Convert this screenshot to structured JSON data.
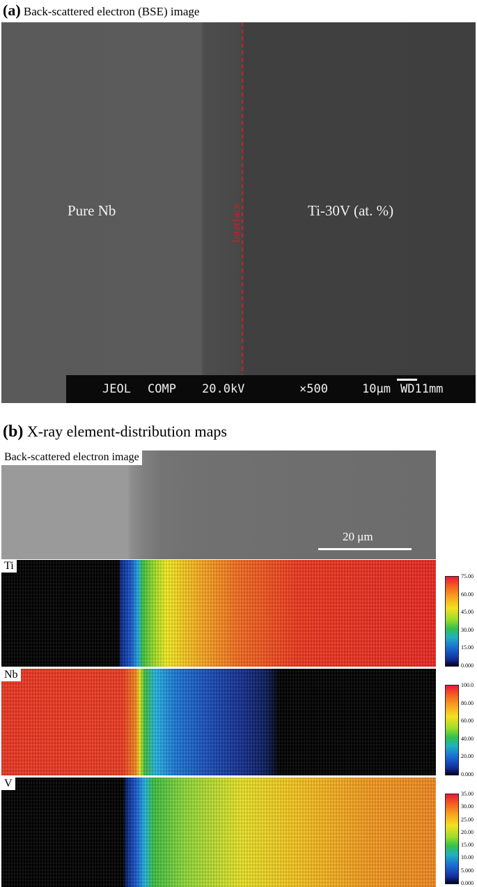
{
  "panel_a": {
    "letter": "(a)",
    "caption": "Back-scattered electron (BSE) image",
    "left_label": "Pure Nb",
    "right_label": "Ti-30V (at. %)",
    "interface_label": "Interface",
    "info_bar": {
      "instrument": "JEOL",
      "mode": "COMP",
      "voltage": "20.0kV",
      "magnification": "×500",
      "scale": "10μm",
      "wd": "WD11mm"
    }
  },
  "panel_b": {
    "letter": "(b)",
    "caption": "X-ray element-distribution maps",
    "bse_title": "Back-scattered electron image",
    "scale_label": "20 μm",
    "maps": [
      {
        "element": "Ti",
        "ticks": [
          "75.00",
          "60.00",
          "45.00",
          "30.00",
          "15.00",
          "0.000"
        ]
      },
      {
        "element": "Nb",
        "ticks": [
          "100.0",
          "80.00",
          "60.00",
          "40.00",
          "20.00",
          "0.000"
        ]
      },
      {
        "element": "V",
        "ticks": [
          "35.00",
          "30.00",
          "25.00",
          "20.00",
          "15.00",
          "10.00",
          "5.000",
          "0.000"
        ]
      }
    ]
  }
}
